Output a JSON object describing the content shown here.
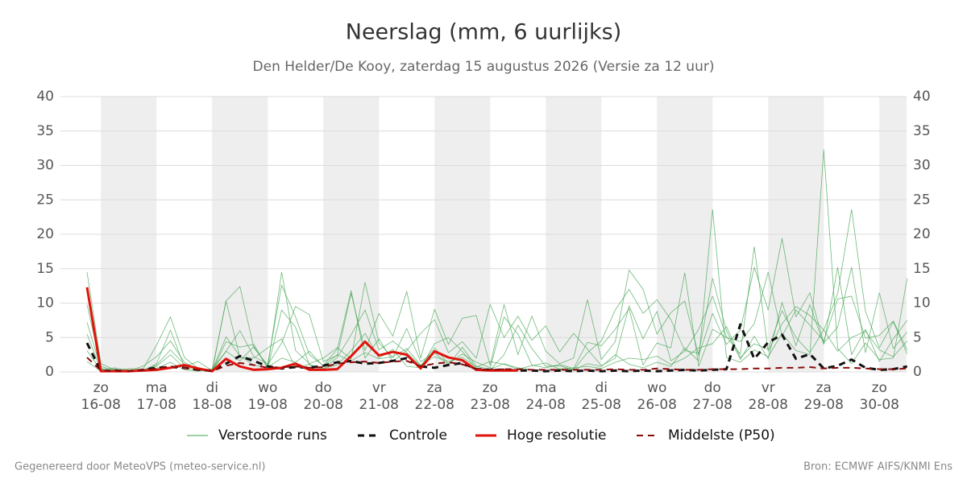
{
  "chart_data": {
    "type": "line",
    "title": "Neerslag (mm, 6 uurlijks)",
    "subtitle": "Den Helder/De Kooy, zaterdag 15 augustus 2026 (Versie za 12 uur)",
    "categories": [
      null,
      [
        "zo",
        "16-08"
      ],
      null,
      null,
      null,
      [
        "ma",
        "17-08"
      ],
      null,
      null,
      null,
      [
        "di",
        "18-08"
      ],
      null,
      null,
      null,
      [
        "wo",
        "19-08"
      ],
      null,
      null,
      null,
      [
        "do",
        "20-08"
      ],
      null,
      null,
      null,
      [
        "vr",
        "21-08"
      ],
      null,
      null,
      null,
      [
        "za",
        "22-08"
      ],
      null,
      null,
      null,
      [
        "zo",
        "23-08"
      ],
      null,
      null,
      null,
      [
        "ma",
        "24-08"
      ],
      null,
      null,
      null,
      [
        "di",
        "25-08"
      ],
      null,
      null,
      null,
      [
        "wo",
        "26-08"
      ],
      null,
      null,
      null,
      [
        "do",
        "27-08"
      ],
      null,
      null,
      null,
      [
        "vr",
        "28-08"
      ],
      null,
      null,
      null,
      [
        "za",
        "29-08"
      ],
      null,
      null,
      null,
      [
        "zo",
        "30-08"
      ],
      null,
      null
    ],
    "ylim": [
      0,
      40
    ],
    "yticks": [
      0,
      5,
      10,
      15,
      20,
      25,
      30,
      35,
      40
    ],
    "grid": true,
    "shade_alternate_days": true,
    "ensemble": {
      "name": "Verstoorde runs",
      "color": "#3fa34d",
      "members": [
        [
          14.5,
          1.2,
          0.3,
          0.1,
          0.2,
          1.0,
          3.2,
          1.1,
          0.4,
          0.2,
          5.1,
          2.3,
          1.0,
          0.6,
          14.5,
          3.1,
          1.2,
          2.0,
          3.5,
          1.9,
          13.0,
          4.2,
          2.1,
          6.3,
          1.5,
          2.8,
          1.0,
          3.6,
          0.8,
          0.4,
          1.2,
          0.6,
          0.3,
          0.2,
          0.4,
          0.3,
          1.2,
          0.8,
          2.5,
          1.1,
          0.6,
          1.4,
          0.8,
          3.5,
          1.6,
          23.6,
          2.1,
          1.4,
          3.2,
          2.2,
          5.6,
          3.1,
          2.5,
          32.3,
          3.4,
          1.2,
          4.2,
          1.8,
          2.0,
          13.6
        ],
        [
          9.8,
          0.8,
          0.2,
          0.5,
          0.3,
          3.9,
          8.0,
          2.1,
          0.5,
          0.3,
          10.3,
          12.4,
          3.5,
          1.0,
          4.2,
          9.5,
          8.3,
          1.5,
          2.4,
          11.4,
          3.1,
          8.5,
          5.2,
          11.7,
          2.0,
          9.1,
          4.0,
          7.8,
          8.2,
          1.0,
          9.8,
          2.5,
          8.1,
          3.0,
          1.2,
          2.0,
          10.5,
          1.8,
          4.4,
          14.8,
          12.0,
          5.5,
          8.6,
          10.3,
          2.4,
          8.5,
          4.0,
          6.1,
          15.2,
          9.0,
          19.4,
          8.0,
          11.5,
          4.2,
          6.5,
          15.2,
          2.8,
          11.5,
          3.4,
          5.8
        ],
        [
          7.2,
          0.5,
          0.1,
          0.2,
          0.1,
          1.2,
          6.1,
          0.8,
          1.5,
          0.2,
          3.0,
          6.0,
          2.2,
          1.2,
          12.6,
          8.0,
          2.5,
          0.9,
          3.3,
          11.8,
          2.0,
          4.8,
          1.5,
          3.1,
          5.6,
          7.6,
          2.8,
          4.4,
          2.0,
          9.8,
          5.0,
          8.1,
          4.6,
          6.7,
          2.9,
          5.6,
          3.3,
          0.9,
          2.0,
          9.6,
          4.8,
          8.8,
          1.6,
          3.0,
          6.2,
          11.0,
          5.1,
          2.6,
          18.2,
          3.0,
          7.0,
          9.5,
          8.2,
          6.1,
          11.4,
          23.6,
          8.8,
          3.5,
          7.3,
          2.6
        ],
        [
          5.5,
          0.3,
          0.6,
          0.2,
          0.8,
          2.2,
          4.5,
          1.4,
          0.2,
          0.1,
          4.4,
          3.6,
          4.0,
          0.5,
          9.0,
          6.5,
          1.0,
          0.4,
          2.1,
          5.4,
          9.0,
          3.2,
          4.5,
          2.8,
          0.9,
          3.5,
          1.2,
          2.6,
          1.4,
          0.6,
          8.0,
          5.5,
          1.0,
          0.6,
          1.1,
          0.5,
          4.3,
          3.8,
          6.2,
          9.2,
          1.0,
          4.2,
          3.5,
          14.4,
          0.8,
          6.2,
          5.0,
          4.4,
          7.0,
          14.5,
          5.2,
          9.0,
          6.8,
          4.5,
          10.6,
          11.0,
          4.9,
          5.3,
          7.4,
          3.2
        ],
        [
          3.1,
          0.2,
          0.4,
          0.1,
          0.3,
          0.8,
          2.5,
          0.6,
          0.3,
          0.1,
          10.3,
          2.1,
          2.0,
          3.5,
          4.8,
          0.6,
          1.1,
          0.5,
          1.0,
          3.1,
          5.6,
          2.0,
          3.3,
          0.8,
          0.6,
          4.1,
          5.0,
          3.0,
          0.5,
          0.3,
          2.5,
          6.8,
          3.4,
          0.8,
          0.9,
          0.3,
          2.8,
          4.5,
          9.0,
          12.0,
          8.5,
          10.5,
          7.6,
          3.1,
          2.7,
          13.6,
          6.0,
          1.8,
          5.2,
          1.9,
          10.1,
          3.8,
          9.8,
          4.0,
          15.2,
          2.5,
          6.2,
          1.5,
          4.8,
          7.5
        ],
        [
          1.5,
          0.1,
          0.2,
          0.3,
          0.2,
          0.5,
          1.4,
          0.3,
          0.1,
          0.4,
          3.0,
          1.6,
          3.7,
          0.7,
          2.0,
          1.4,
          3.0,
          0.8,
          2.5,
          1.6,
          2.8,
          1.9,
          2.2,
          3.4,
          1.0,
          2.2,
          1.5,
          2.1,
          0.7,
          1.5,
          1.1,
          0.4,
          0.9,
          1.3,
          0.4,
          0.6,
          0.8,
          0.5,
          1.4,
          2.0,
          1.8,
          2.3,
          1.1,
          2.0,
          3.5,
          4.1,
          6.6,
          2.1,
          4.1,
          3.3,
          8.9,
          5.0,
          2.8,
          6.1,
          3.0,
          5.0,
          5.9,
          3.2,
          2.2,
          4.5
        ]
      ]
    },
    "series": [
      {
        "name": "Controle",
        "color": "#111111",
        "dashed": true,
        "width": 3,
        "values": [
          4.2,
          0.1,
          0.2,
          0.1,
          0.3,
          0.6,
          0.7,
          0.6,
          0.3,
          0.2,
          1.2,
          2.3,
          1.6,
          0.8,
          0.5,
          0.7,
          0.6,
          0.9,
          1.4,
          1.6,
          1.2,
          1.3,
          1.6,
          2.0,
          0.8,
          0.6,
          1.0,
          1.3,
          0.4,
          0.3,
          0.3,
          0.2,
          0.2,
          0.1,
          0.2,
          0.1,
          0.2,
          0.1,
          0.2,
          0.1,
          0.2,
          0.1,
          0.2,
          0.3,
          0.2,
          0.3,
          0.4,
          6.9,
          1.9,
          4.3,
          5.4,
          1.9,
          2.6,
          0.5,
          0.9,
          1.8,
          0.6,
          0.3,
          0.4,
          0.8
        ]
      },
      {
        "name": "Hoge resolutie",
        "color": "#e0140c",
        "dashed": false,
        "width": 3,
        "values": [
          12.3,
          0.1,
          0.1,
          0.1,
          0.2,
          0.3,
          0.6,
          1.0,
          0.5,
          0.1,
          1.9,
          0.8,
          0.3,
          0.4,
          0.6,
          1.2,
          0.3,
          0.3,
          0.4,
          2.3,
          4.4,
          2.4,
          2.9,
          2.5,
          0.5,
          3.0,
          2.1,
          1.7,
          0.3,
          0.2,
          0.2,
          0.2,
          null,
          null,
          null,
          null,
          null,
          null,
          null,
          null,
          null,
          null,
          null,
          null,
          null,
          null,
          null,
          null,
          null,
          null,
          null,
          null,
          null,
          null,
          null,
          null,
          null,
          null,
          null,
          null
        ]
      },
      {
        "name": "Middelste (P50)",
        "color": "#8b0a0a",
        "dashed": true,
        "width": 2,
        "values": [
          2.1,
          0.2,
          0.1,
          0.1,
          0.2,
          0.5,
          0.8,
          0.6,
          0.3,
          0.1,
          0.9,
          1.3,
          1.0,
          0.6,
          0.7,
          0.8,
          0.6,
          0.7,
          1.2,
          1.4,
          1.5,
          1.3,
          1.5,
          1.6,
          0.8,
          1.2,
          1.4,
          1.1,
          0.4,
          0.3,
          0.4,
          0.4,
          0.3,
          0.3,
          0.3,
          0.3,
          0.3,
          0.3,
          0.4,
          0.3,
          0.3,
          0.5,
          0.4,
          0.3,
          0.3,
          0.4,
          0.4,
          0.4,
          0.5,
          0.5,
          0.6,
          0.6,
          0.7,
          0.5,
          0.6,
          0.6,
          0.5,
          0.4,
          0.4,
          0.5
        ]
      }
    ]
  },
  "footer": {
    "left": "Gegenereerd door MeteoVPS (meteo-service.nl)",
    "right": "Bron: ECMWF AIFS/KNMI Ens"
  }
}
